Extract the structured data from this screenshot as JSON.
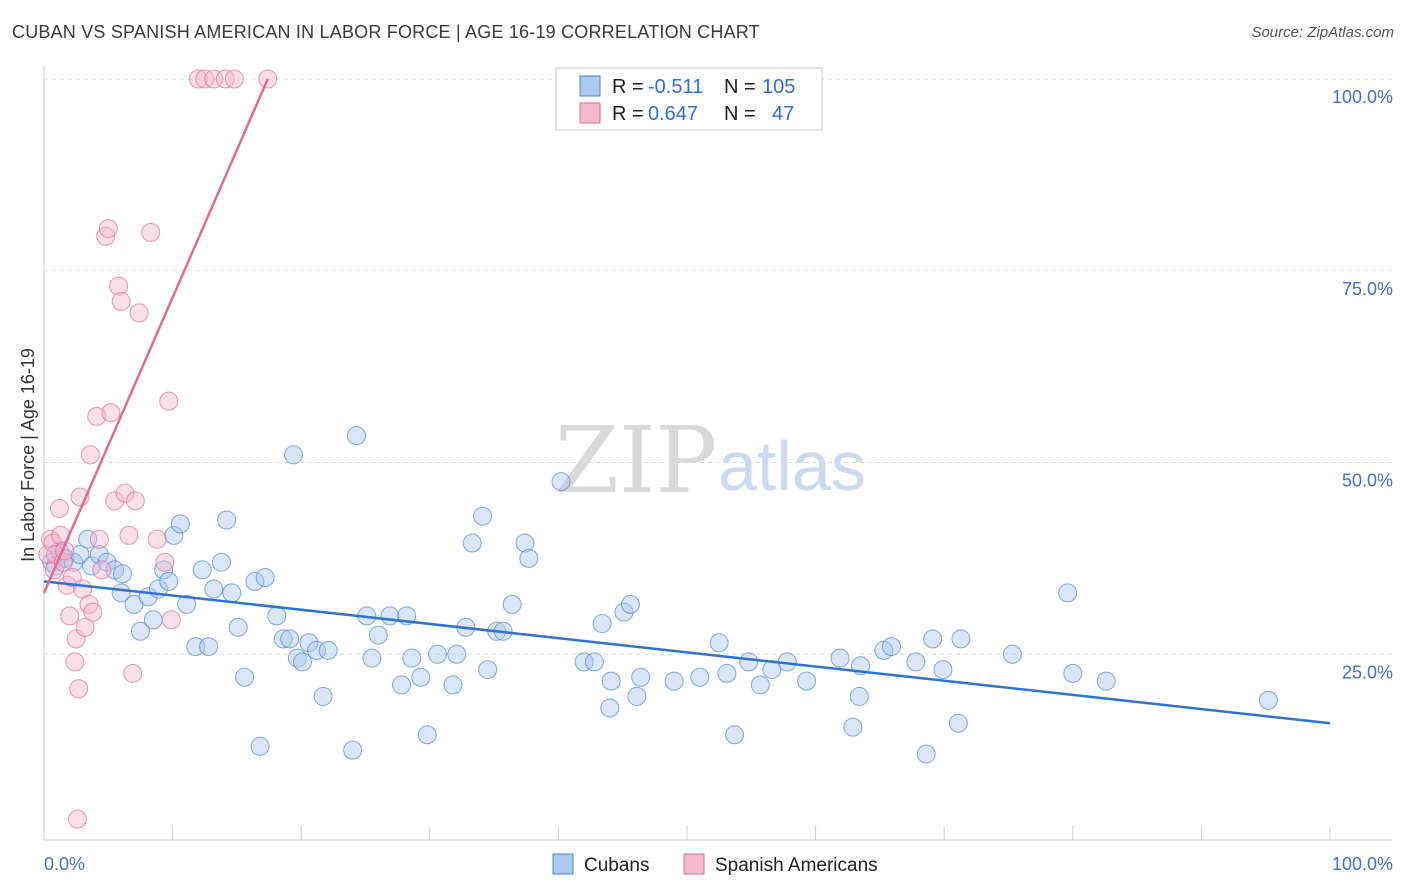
{
  "title": "CUBAN VS SPANISH AMERICAN IN LABOR FORCE | AGE 16-19 CORRELATION CHART",
  "source": "Source: ZipAtlas.com",
  "watermark": {
    "zip": "ZIP",
    "atlas": "atlas"
  },
  "colors": {
    "blue": "#4a86d8",
    "blue_fill": "#aac8f0",
    "pink": "#e06b9a",
    "pink_fill": "#f4b8cc"
  },
  "legend": {
    "r_label": "R =",
    "n_label": "N =",
    "rows": [
      {
        "r": "-0.511",
        "n": "105"
      },
      {
        "r": "0.647",
        "n": "47"
      }
    ]
  },
  "bottom_legend": [
    "Cubans",
    "Spanish Americans"
  ],
  "chart_data": {
    "type": "scatter",
    "title": "CUBAN VS SPANISH AMERICAN IN LABOR FORCE | AGE 16-19 CORRELATION CHART",
    "xlabel": "",
    "ylabel": "In Labor Force | Age 16-19",
    "xlim": [
      0,
      100
    ],
    "ylim": [
      0,
      102
    ],
    "x_tick_labels": [
      "0.0%",
      "100.0%"
    ],
    "y_ticks": [
      25,
      50,
      75,
      100
    ],
    "y_tick_labels": [
      "25.0%",
      "50.0%",
      "75.0%",
      "100.0%"
    ],
    "grid": true,
    "legend_position": "top-center",
    "series": [
      {
        "name": "Cubans",
        "r": -0.511,
        "n": 105,
        "trend": [
          [
            0,
            34.5
          ],
          [
            100,
            16
          ]
        ],
        "points": [
          [
            0.6,
            37
          ],
          [
            0.9,
            36.5
          ],
          [
            1.2,
            38.5
          ],
          [
            1.6,
            37.5
          ],
          [
            2.3,
            37
          ],
          [
            2.8,
            38
          ],
          [
            3.4,
            40
          ],
          [
            3.7,
            36.5
          ],
          [
            4.3,
            38
          ],
          [
            4.9,
            37
          ],
          [
            5.5,
            36
          ],
          [
            6.1,
            35.5
          ],
          [
            6.0,
            33
          ],
          [
            7.0,
            31.5
          ],
          [
            7.5,
            28
          ],
          [
            8.1,
            32.5
          ],
          [
            8.5,
            29.5
          ],
          [
            8.9,
            33.5
          ],
          [
            9.3,
            36
          ],
          [
            9.7,
            34.5
          ],
          [
            10.1,
            40.5
          ],
          [
            10.6,
            42
          ],
          [
            11.1,
            31.5
          ],
          [
            11.8,
            26
          ],
          [
            12.3,
            36
          ],
          [
            12.8,
            26
          ],
          [
            13.2,
            33.5
          ],
          [
            13.8,
            37
          ],
          [
            14.2,
            42.5
          ],
          [
            14.6,
            33
          ],
          [
            15.1,
            28.5
          ],
          [
            15.6,
            22
          ],
          [
            16.4,
            34.5
          ],
          [
            16.8,
            13
          ],
          [
            17.2,
            35
          ],
          [
            18.1,
            30
          ],
          [
            18.6,
            27
          ],
          [
            19.1,
            27
          ],
          [
            19.4,
            51
          ],
          [
            19.7,
            24.5
          ],
          [
            20.1,
            24
          ],
          [
            20.6,
            26.5
          ],
          [
            21.2,
            25.5
          ],
          [
            21.7,
            19.5
          ],
          [
            22.1,
            25.5
          ],
          [
            24.0,
            12.5
          ],
          [
            24.3,
            53.5
          ],
          [
            25.1,
            30
          ],
          [
            25.5,
            24.5
          ],
          [
            26.0,
            27.5
          ],
          [
            26.9,
            30
          ],
          [
            27.8,
            21
          ],
          [
            28.2,
            30
          ],
          [
            28.6,
            24.5
          ],
          [
            29.3,
            22
          ],
          [
            29.8,
            14.5
          ],
          [
            30.6,
            25
          ],
          [
            31.8,
            21
          ],
          [
            32.1,
            25
          ],
          [
            32.8,
            28.5
          ],
          [
            33.3,
            39.5
          ],
          [
            34.1,
            43
          ],
          [
            34.5,
            23
          ],
          [
            35.2,
            28
          ],
          [
            35.7,
            28
          ],
          [
            36.4,
            31.5
          ],
          [
            37.4,
            39.5
          ],
          [
            37.7,
            37.5
          ],
          [
            40.2,
            47.5
          ],
          [
            42.0,
            24
          ],
          [
            42.8,
            24
          ],
          [
            43.4,
            29
          ],
          [
            44.1,
            21.5
          ],
          [
            44.0,
            18
          ],
          [
            45.1,
            30.5
          ],
          [
            45.6,
            31.5
          ],
          [
            46.1,
            19.5
          ],
          [
            46.4,
            22
          ],
          [
            49.0,
            21.5
          ],
          [
            51.0,
            22
          ],
          [
            52.5,
            26.5
          ],
          [
            53.1,
            22.5
          ],
          [
            53.7,
            14.5
          ],
          [
            54.8,
            24
          ],
          [
            55.7,
            21
          ],
          [
            56.6,
            23
          ],
          [
            57.8,
            24
          ],
          [
            59.3,
            21.5
          ],
          [
            61.9,
            24.5
          ],
          [
            62.9,
            15.5
          ],
          [
            63.5,
            23.5
          ],
          [
            63.4,
            19.5
          ],
          [
            65.3,
            25.5
          ],
          [
            65.9,
            26
          ],
          [
            67.8,
            24
          ],
          [
            68.6,
            12
          ],
          [
            69.1,
            27
          ],
          [
            69.9,
            23
          ],
          [
            71.1,
            16
          ],
          [
            71.3,
            27
          ],
          [
            75.3,
            25
          ],
          [
            79.6,
            33
          ],
          [
            80.0,
            22.5
          ],
          [
            82.6,
            21.5
          ],
          [
            95.2,
            19
          ]
        ]
      },
      {
        "name": "Spanish Americans",
        "r": 0.647,
        "n": 47,
        "trend": [
          [
            0,
            33
          ],
          [
            17.4,
            100
          ]
        ],
        "points": [
          [
            0.3,
            38
          ],
          [
            0.5,
            40
          ],
          [
            0.7,
            39.5
          ],
          [
            0.8,
            36
          ],
          [
            0.9,
            38
          ],
          [
            1.2,
            44
          ],
          [
            1.3,
            40.5
          ],
          [
            1.5,
            37
          ],
          [
            1.6,
            38.5
          ],
          [
            1.8,
            34
          ],
          [
            2.0,
            30
          ],
          [
            2.2,
            35
          ],
          [
            2.4,
            24
          ],
          [
            2.5,
            27
          ],
          [
            2.7,
            20.5
          ],
          [
            2.8,
            45.5
          ],
          [
            2.6,
            3.5
          ],
          [
            3.0,
            33.5
          ],
          [
            3.2,
            28.5
          ],
          [
            3.5,
            31.5
          ],
          [
            3.6,
            51
          ],
          [
            3.8,
            30.5
          ],
          [
            4.1,
            56
          ],
          [
            4.3,
            40
          ],
          [
            4.5,
            36
          ],
          [
            4.8,
            79.5
          ],
          [
            5.0,
            80.5
          ],
          [
            5.2,
            56.5
          ],
          [
            5.5,
            45
          ],
          [
            5.8,
            73
          ],
          [
            6.0,
            71
          ],
          [
            6.3,
            46
          ],
          [
            6.6,
            40.5
          ],
          [
            6.9,
            22.5
          ],
          [
            7.1,
            45
          ],
          [
            7.4,
            69.5
          ],
          [
            8.3,
            80
          ],
          [
            8.8,
            40
          ],
          [
            9.4,
            37
          ],
          [
            9.7,
            58
          ],
          [
            9.9,
            29.5
          ],
          [
            12.0,
            100
          ],
          [
            12.5,
            100
          ],
          [
            13.2,
            100
          ],
          [
            14.1,
            100
          ],
          [
            14.8,
            100
          ],
          [
            17.4,
            100
          ]
        ]
      }
    ]
  }
}
